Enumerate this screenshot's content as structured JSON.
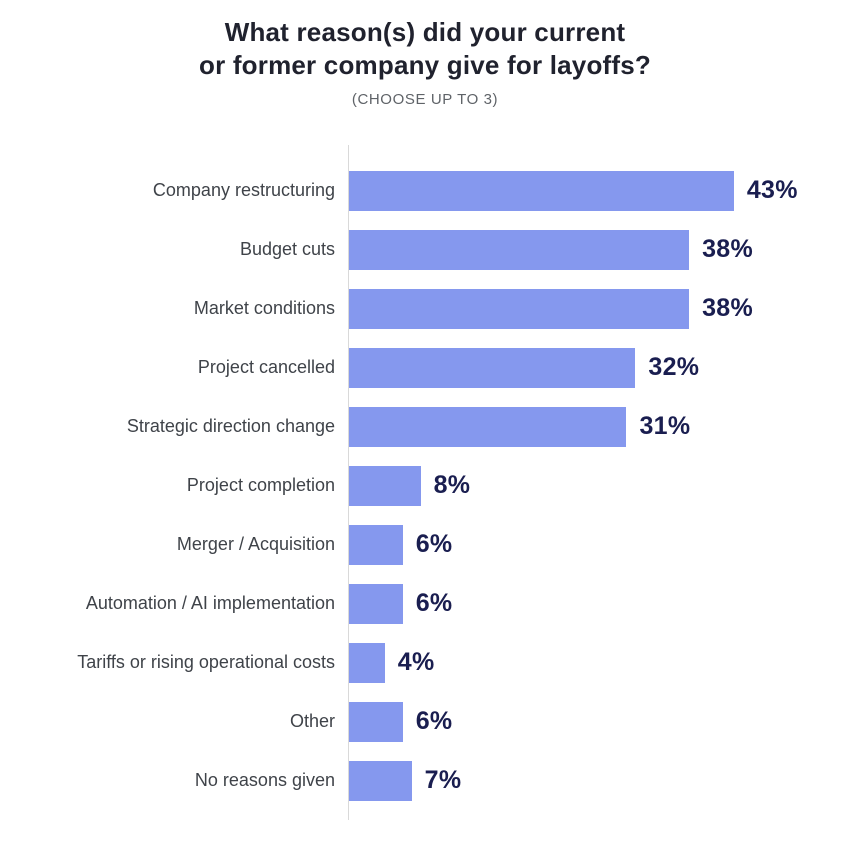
{
  "header": {
    "title_lines": [
      "What reason(s) did your current",
      "or former company give for layoffs?"
    ],
    "subtitle": "(CHOOSE UP TO 3)"
  },
  "chart_data": {
    "type": "bar",
    "orientation": "horizontal",
    "title": "What reason(s) did your current or former company give for layoffs?",
    "subtitle": "(CHOOSE UP TO 3)",
    "categories": [
      "Company restructuring",
      "Budget cuts",
      "Market conditions",
      "Project cancelled",
      "Strategic direction change",
      "Project completion",
      "Merger / Acquisition",
      "Automation / AI implementation",
      "Tariffs or rising operational costs",
      "Other",
      "No reasons given"
    ],
    "values": [
      43,
      38,
      38,
      32,
      31,
      8,
      6,
      6,
      4,
      6,
      7
    ],
    "value_suffix": "%",
    "xlim": [
      0,
      50
    ],
    "grid": false,
    "legend": false,
    "bar_color": "#8598ee",
    "value_label_color": "#1a1e50",
    "category_label_color": "#3f4349",
    "axis_line_color": "#d9d9d9",
    "title_color": "#20222e",
    "subtitle_color": "#5f6368"
  }
}
